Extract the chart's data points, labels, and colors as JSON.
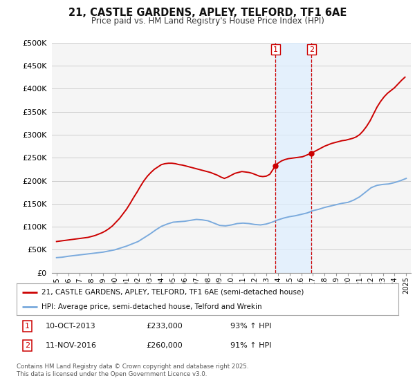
{
  "title": "21, CASTLE GARDENS, APLEY, TELFORD, TF1 6AE",
  "subtitle": "Price paid vs. HM Land Registry's House Price Index (HPI)",
  "ylim": [
    0,
    500000
  ],
  "yticks": [
    0,
    50000,
    100000,
    150000,
    200000,
    250000,
    300000,
    350000,
    400000,
    450000,
    500000
  ],
  "ytick_labels": [
    "£0",
    "£50K",
    "£100K",
    "£150K",
    "£200K",
    "£250K",
    "£300K",
    "£350K",
    "£400K",
    "£450K",
    "£500K"
  ],
  "background_color": "#ffffff",
  "plot_bg_color": "#f5f5f5",
  "grid_color": "#cccccc",
  "red_line_color": "#cc0000",
  "blue_line_color": "#7aaadd",
  "sale1_x": 2013.79,
  "sale1_price": 233000,
  "sale1_label": "1",
  "sale2_x": 2016.87,
  "sale2_price": 260000,
  "sale2_label": "2",
  "shade_color": "#ddeeff",
  "legend_label_red": "21, CASTLE GARDENS, APLEY, TELFORD, TF1 6AE (semi-detached house)",
  "legend_label_blue": "HPI: Average price, semi-detached house, Telford and Wrekin",
  "footer": "Contains HM Land Registry data © Crown copyright and database right 2025.\nThis data is licensed under the Open Government Licence v3.0.",
  "hpi_x": [
    1995.0,
    1995.5,
    1996.0,
    1996.5,
    1997.0,
    1997.5,
    1998.0,
    1998.5,
    1999.0,
    1999.5,
    2000.0,
    2000.5,
    2001.0,
    2001.5,
    2002.0,
    2002.5,
    2003.0,
    2003.5,
    2004.0,
    2004.5,
    2005.0,
    2005.5,
    2006.0,
    2006.5,
    2007.0,
    2007.5,
    2008.0,
    2008.5,
    2009.0,
    2009.5,
    2010.0,
    2010.5,
    2011.0,
    2011.5,
    2012.0,
    2012.5,
    2013.0,
    2013.5,
    2014.0,
    2014.5,
    2015.0,
    2015.5,
    2016.0,
    2016.5,
    2017.0,
    2017.5,
    2018.0,
    2018.5,
    2019.0,
    2019.5,
    2020.0,
    2020.5,
    2021.0,
    2021.5,
    2022.0,
    2022.5,
    2023.0,
    2023.5,
    2024.0,
    2024.5,
    2025.0
  ],
  "hpi_y": [
    33000,
    34000,
    36000,
    37500,
    39000,
    40500,
    42000,
    43500,
    45000,
    47500,
    50000,
    54000,
    58000,
    63000,
    68000,
    76000,
    84000,
    93000,
    101000,
    106000,
    110000,
    111000,
    112000,
    114000,
    116000,
    115000,
    113000,
    108000,
    103000,
    102000,
    104000,
    107000,
    108000,
    107000,
    105000,
    104000,
    106000,
    110000,
    115000,
    119000,
    122000,
    124000,
    127000,
    130000,
    135000,
    138000,
    142000,
    145000,
    148000,
    151000,
    153000,
    158000,
    165000,
    175000,
    185000,
    190000,
    192000,
    193000,
    196000,
    200000,
    205000
  ],
  "red_x": [
    1995.0,
    1995.3,
    1995.6,
    1995.9,
    1996.2,
    1996.5,
    1996.8,
    1997.1,
    1997.4,
    1997.7,
    1998.0,
    1998.3,
    1998.6,
    1998.9,
    1999.2,
    1999.5,
    1999.8,
    2000.1,
    2000.4,
    2000.7,
    2001.0,
    2001.3,
    2001.6,
    2001.9,
    2002.2,
    2002.5,
    2002.8,
    2003.1,
    2003.4,
    2003.7,
    2004.0,
    2004.3,
    2004.6,
    2004.9,
    2005.2,
    2005.5,
    2005.8,
    2006.1,
    2006.4,
    2006.7,
    2007.0,
    2007.3,
    2007.6,
    2007.9,
    2008.2,
    2008.5,
    2008.8,
    2009.1,
    2009.4,
    2009.7,
    2010.0,
    2010.3,
    2010.6,
    2010.9,
    2011.2,
    2011.5,
    2011.8,
    2012.1,
    2012.4,
    2012.7,
    2013.0,
    2013.3,
    2013.79,
    2014.0,
    2014.3,
    2014.6,
    2014.9,
    2015.2,
    2015.5,
    2015.8,
    2016.1,
    2016.4,
    2016.87,
    2017.1,
    2017.4,
    2017.7,
    2018.0,
    2018.3,
    2018.6,
    2018.9,
    2019.2,
    2019.5,
    2019.8,
    2020.1,
    2020.4,
    2020.7,
    2021.0,
    2021.3,
    2021.6,
    2021.9,
    2022.2,
    2022.5,
    2022.8,
    2023.1,
    2023.4,
    2023.7,
    2024.0,
    2024.3,
    2024.6,
    2024.9
  ],
  "red_y": [
    68000,
    69000,
    70000,
    71000,
    72000,
    73000,
    74000,
    75000,
    76000,
    77000,
    79000,
    81000,
    84000,
    87000,
    91000,
    96000,
    102000,
    110000,
    118000,
    128000,
    138000,
    150000,
    163000,
    175000,
    188000,
    200000,
    210000,
    218000,
    225000,
    230000,
    235000,
    237000,
    238000,
    238000,
    237000,
    235000,
    234000,
    232000,
    230000,
    228000,
    226000,
    224000,
    222000,
    220000,
    218000,
    215000,
    212000,
    208000,
    205000,
    208000,
    212000,
    216000,
    218000,
    220000,
    219000,
    218000,
    216000,
    213000,
    210000,
    209000,
    210000,
    214000,
    233000,
    238000,
    243000,
    246000,
    248000,
    249000,
    250000,
    251000,
    252000,
    255000,
    260000,
    263000,
    267000,
    271000,
    275000,
    278000,
    281000,
    283000,
    285000,
    287000,
    288000,
    290000,
    292000,
    295000,
    300000,
    308000,
    318000,
    330000,
    345000,
    360000,
    372000,
    382000,
    390000,
    396000,
    402000,
    410000,
    418000,
    425000
  ]
}
